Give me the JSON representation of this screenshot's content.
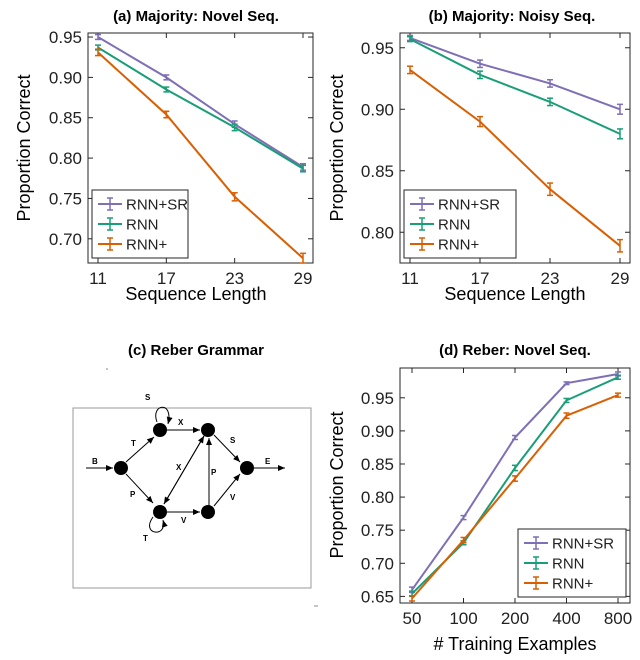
{
  "chart_data": [
    {
      "type": "line",
      "title": "(a) Majority: Novel Seq.",
      "xlabel": "Sequence Length",
      "ylabel": "Proportion Correct",
      "x": [
        11,
        17,
        23,
        29
      ],
      "x_ticks": [
        "11",
        "17",
        "23",
        "29"
      ],
      "ylim": [
        0.67,
        0.955
      ],
      "y_ticks": [
        0.7,
        0.75,
        0.8,
        0.85,
        0.9,
        0.95
      ],
      "y_tick_labels": [
        "0.70",
        "0.75",
        "0.80",
        "0.85",
        "0.90",
        "0.95"
      ],
      "legend": "bottom-left",
      "series": [
        {
          "name": "RNN+SR",
          "color": "#7e6fb6",
          "values": [
            0.95,
            0.9,
            0.842,
            0.789
          ],
          "errors": [
            0.003,
            0.003,
            0.004,
            0.004
          ]
        },
        {
          "name": "RNN",
          "color": "#1a9e77",
          "values": [
            0.937,
            0.885,
            0.838,
            0.787
          ],
          "errors": [
            0.003,
            0.003,
            0.004,
            0.004
          ]
        },
        {
          "name": "RNN+",
          "color": "#d95f02",
          "values": [
            0.931,
            0.854,
            0.752,
            0.676
          ],
          "errors": [
            0.004,
            0.004,
            0.005,
            0.006
          ]
        }
      ]
    },
    {
      "type": "line",
      "title": "(b) Majority: Noisy Seq.",
      "xlabel": "Sequence Length",
      "ylabel": "Proportion Correct",
      "x": [
        11,
        17,
        23,
        29
      ],
      "x_ticks": [
        "11",
        "17",
        "23",
        "29"
      ],
      "ylim": [
        0.775,
        0.962
      ],
      "y_ticks": [
        0.8,
        0.85,
        0.9,
        0.95
      ],
      "y_tick_labels": [
        "0.80",
        "0.85",
        "0.90",
        "0.95"
      ],
      "legend": "bottom-left",
      "series": [
        {
          "name": "RNN+SR",
          "color": "#7e6fb6",
          "values": [
            0.958,
            0.937,
            0.921,
            0.9
          ],
          "errors": [
            0.002,
            0.003,
            0.003,
            0.004
          ]
        },
        {
          "name": "RNN",
          "color": "#1a9e77",
          "values": [
            0.957,
            0.928,
            0.906,
            0.88
          ],
          "errors": [
            0.002,
            0.003,
            0.003,
            0.004
          ]
        },
        {
          "name": "RNN+",
          "color": "#d95f02",
          "values": [
            0.932,
            0.89,
            0.835,
            0.789
          ],
          "errors": [
            0.003,
            0.004,
            0.005,
            0.005
          ]
        }
      ]
    },
    {
      "type": "line",
      "title": "(d) Reber: Novel Seq.",
      "xlabel": "# Training Examples",
      "ylabel": "Proportion Correct",
      "x": [
        50,
        100,
        200,
        400,
        800
      ],
      "x_ticks": [
        "50",
        "100",
        "200",
        "400",
        "800"
      ],
      "ylim": [
        0.64,
        0.995
      ],
      "y_ticks": [
        0.65,
        0.7,
        0.75,
        0.8,
        0.85,
        0.9,
        0.95
      ],
      "y_tick_labels": [
        "0.65",
        "0.70",
        "0.75",
        "0.80",
        "0.85",
        "0.90",
        "0.95"
      ],
      "legend": "bottom-right",
      "series": [
        {
          "name": "RNN+SR",
          "color": "#7e6fb6",
          "values": [
            0.66,
            0.769,
            0.89,
            0.972,
            0.986
          ],
          "errors": [
            0.004,
            0.003,
            0.003,
            0.002,
            0.003
          ]
        },
        {
          "name": "RNN",
          "color": "#1a9e77",
          "values": [
            0.654,
            0.731,
            0.844,
            0.946,
            0.981
          ],
          "errors": [
            0.004,
            0.003,
            0.004,
            0.003,
            0.003
          ]
        },
        {
          "name": "RNN+",
          "color": "#d95f02",
          "values": [
            0.647,
            0.735,
            0.828,
            0.923,
            0.954
          ],
          "errors": [
            0.004,
            0.004,
            0.004,
            0.004,
            0.003
          ]
        }
      ]
    }
  ],
  "diagram": {
    "title": "(c) Reber Grammar",
    "edge_labels": [
      "S",
      "T",
      "X",
      "B",
      "P",
      "X",
      "P",
      "S",
      "E",
      "V",
      "V",
      "T"
    ]
  }
}
